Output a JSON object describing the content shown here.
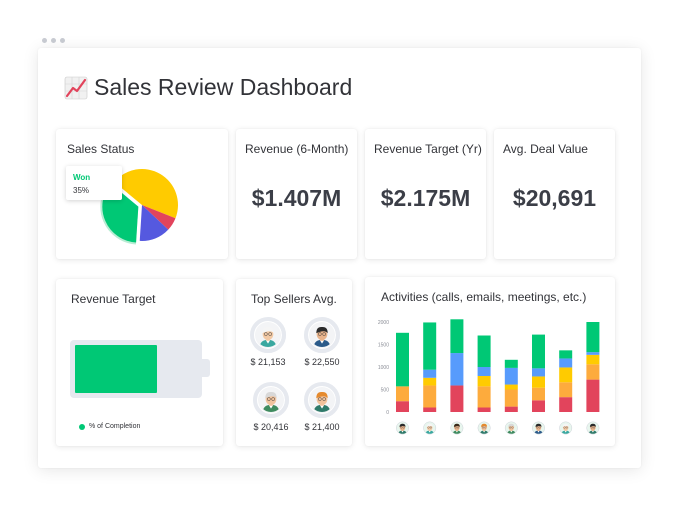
{
  "page": {
    "title": "Sales Review Dashboard",
    "title_icon": "chart-increasing-icon"
  },
  "colors": {
    "green": "#00c875",
    "yellow": "#ffcb00",
    "blue": "#579bfc",
    "purple": "#5559df",
    "red": "#e2445c",
    "orange": "#fdab3d",
    "battery_bg": "#e6e9ef"
  },
  "sales_status": {
    "title": "Sales Status",
    "tooltip": {
      "label": "Won",
      "value": "35%"
    },
    "chart_data": {
      "type": "pie",
      "slices": [
        {
          "label": "Won",
          "value": 35,
          "color": "#00c875"
        },
        {
          "label": "",
          "value": 45,
          "color": "#ffcb00"
        },
        {
          "label": "",
          "value": 6,
          "color": "#e2445c"
        },
        {
          "label": "",
          "value": 14,
          "color": "#5559df"
        }
      ]
    }
  },
  "kpis": [
    {
      "title": "Revenue (6-Month)",
      "value": "$1.407M"
    },
    {
      "title": "Revenue Target (Yr)",
      "value": "$2.175M"
    },
    {
      "title": "Avg. Deal Value",
      "value": "$20,691"
    }
  ],
  "revenue_target": {
    "title": "Revenue Target",
    "legend": "% of Completion",
    "completion_fraction": 0.67
  },
  "top_sellers": {
    "title": "Top Sellers Avg.",
    "sellers": [
      {
        "value": "$ 21,153",
        "progress": 0.65,
        "shirt": "#3aa8a0",
        "skin": "#f2c9a5",
        "hair": "#f5f5f5",
        "hair_dark": false
      },
      {
        "value": "$ 22,550",
        "progress": 0.75,
        "shirt": "#2c5b8a",
        "skin": "#e9b48c",
        "hair": "#2b2b2b",
        "hair_dark": true
      },
      {
        "value": "$ 20,416",
        "progress": 0.55,
        "shirt": "#3f8b5f",
        "skin": "#f0c39e",
        "hair": "#d8d8d8",
        "hair_dark": false
      },
      {
        "value": "$ 21,400",
        "progress": 0.6,
        "shirt": "#2f7a6a",
        "skin": "#f1c29b",
        "hair": "#e58a2e",
        "hair_dark": false
      }
    ]
  },
  "activities": {
    "title": "Activities (calls, emails, meetings, etc.)",
    "chart_data": {
      "type": "bar",
      "stacked": true,
      "categories": [
        "",
        "",
        "",
        "",
        "",
        "",
        "",
        ""
      ],
      "ylim": [
        0,
        2000
      ],
      "y_ticks": [
        "0",
        "500",
        "1000",
        "1500",
        "2000"
      ],
      "series": [
        {
          "color": "#e2445c",
          "values": [
            240,
            100,
            590,
            100,
            120,
            260,
            330,
            720
          ]
        },
        {
          "color": "#fdab3d",
          "values": [
            330,
            490,
            0,
            470,
            380,
            280,
            330,
            340
          ]
        },
        {
          "color": "#ffcb00",
          "values": [
            0,
            170,
            0,
            230,
            110,
            250,
            330,
            210
          ]
        },
        {
          "color": "#579bfc",
          "values": [
            0,
            180,
            720,
            200,
            370,
            180,
            200,
            60
          ]
        },
        {
          "color": "#00c875",
          "values": [
            1190,
            1050,
            750,
            700,
            180,
            750,
            180,
            670
          ]
        }
      ],
      "avatars": [
        {
          "skin": "#e9b48c",
          "hair": "#2b2b2b",
          "shirt": "#2f7a6a"
        },
        {
          "skin": "#f2c9a5",
          "hair": "#f5f5f5",
          "shirt": "#3aa8a0"
        },
        {
          "skin": "#e9b48c",
          "hair": "#3a2a1a",
          "shirt": "#3f8b5f"
        },
        {
          "skin": "#f1c29b",
          "hair": "#e58a2e",
          "shirt": "#2f7a6a"
        },
        {
          "skin": "#f0c39e",
          "hair": "#d8d8d8",
          "shirt": "#3f8b5f"
        },
        {
          "skin": "#e9b48c",
          "hair": "#2b2b2b",
          "shirt": "#2c5b8a"
        },
        {
          "skin": "#f2c9a5",
          "hair": "#f5f5f5",
          "shirt": "#3aa8a0"
        },
        {
          "skin": "#e9b48c",
          "hair": "#2b2b2b",
          "shirt": "#2f7a6a"
        }
      ]
    }
  }
}
